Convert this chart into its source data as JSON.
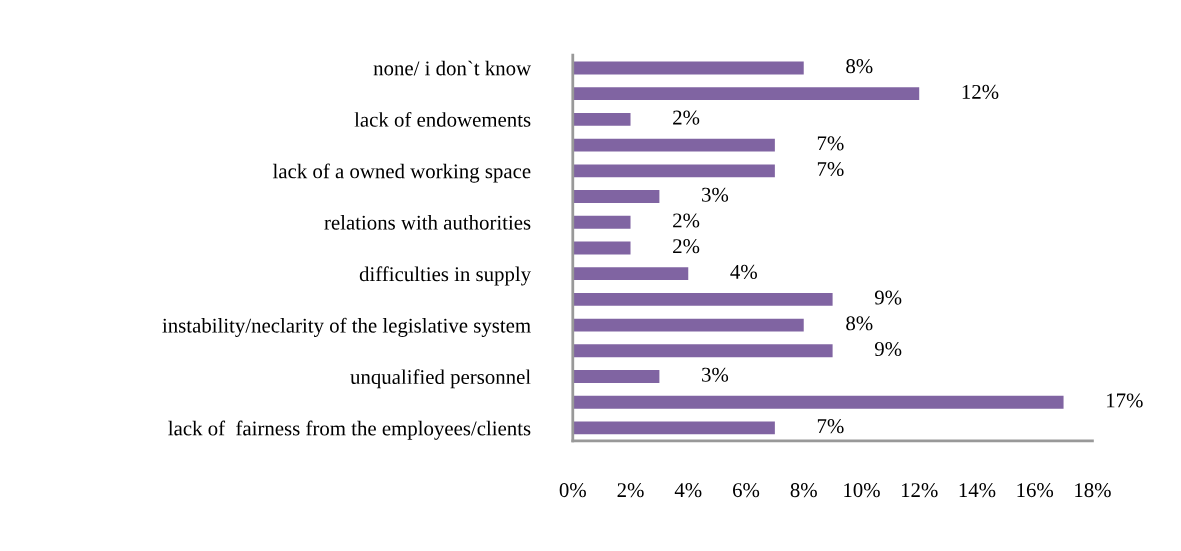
{
  "chart_data": {
    "type": "bar",
    "orientation": "horizontal",
    "categories": [
      "none/ i don`t know",
      null,
      "lack of endowements",
      null,
      "lack of a owned working space",
      null,
      "relations with authorities",
      null,
      "difficulties in supply",
      null,
      "instability/neclarity of the legislative system",
      null,
      "unqualified personnel",
      null,
      "lack of  fairness from the employees/clients"
    ],
    "values": [
      8,
      12,
      2,
      7,
      7,
      3,
      2,
      2,
      4,
      9,
      8,
      9,
      3,
      17,
      7
    ],
    "value_labels": [
      "8%",
      "12%",
      "2%",
      "7%",
      "7%",
      "3%",
      "2%",
      "2%",
      "4%",
      "9%",
      "8%",
      "9%",
      "3%",
      "17%",
      "7%"
    ],
    "color": "#8064a2",
    "xlim": [
      0,
      18
    ],
    "xticks": [
      {
        "value": 0,
        "label": "0%"
      },
      {
        "value": 2,
        "label": "2%"
      },
      {
        "value": 4,
        "label": "4%"
      },
      {
        "value": 6,
        "label": "6%"
      },
      {
        "value": 8,
        "label": "8%"
      },
      {
        "value": 10,
        "label": "10%"
      },
      {
        "value": 12,
        "label": "12%"
      },
      {
        "value": 14,
        "label": "14%"
      },
      {
        "value": 16,
        "label": "16%"
      },
      {
        "value": 18,
        "label": "18%"
      }
    ],
    "grid": false,
    "legend": false
  }
}
